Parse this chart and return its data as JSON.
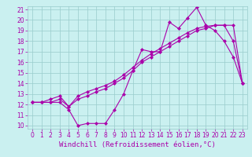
{
  "xlabel": "Windchill (Refroidissement éolien,°C)",
  "xlim": [
    -0.5,
    23.5
  ],
  "ylim": [
    9.7,
    21.3
  ],
  "yticks": [
    10,
    11,
    12,
    13,
    14,
    15,
    16,
    17,
    18,
    19,
    20,
    21
  ],
  "xticks": [
    0,
    1,
    2,
    3,
    4,
    5,
    6,
    7,
    8,
    9,
    10,
    11,
    12,
    13,
    14,
    15,
    16,
    17,
    18,
    19,
    20,
    21,
    22,
    23
  ],
  "bg_color": "#caf0f0",
  "line_color": "#aa00aa",
  "line1_x": [
    0,
    1,
    2,
    3,
    4,
    5,
    6,
    7,
    8,
    9,
    10,
    11,
    12,
    13,
    14,
    15,
    16,
    17,
    18,
    19,
    20,
    21,
    22,
    23
  ],
  "line1_y": [
    12.2,
    12.2,
    12.2,
    12.2,
    11.5,
    10.0,
    10.2,
    10.2,
    10.2,
    11.5,
    13.0,
    15.2,
    17.2,
    17.0,
    17.0,
    19.8,
    19.2,
    20.2,
    21.2,
    19.5,
    19.0,
    18.0,
    16.5,
    14.0
  ],
  "line2_x": [
    0,
    1,
    2,
    3,
    4,
    5,
    6,
    7,
    8,
    9,
    10,
    11,
    12,
    13,
    14,
    15,
    16,
    17,
    18,
    19,
    20,
    21,
    22,
    23
  ],
  "line2_y": [
    12.2,
    12.2,
    12.2,
    12.5,
    11.8,
    12.5,
    12.8,
    13.2,
    13.5,
    14.0,
    14.5,
    15.2,
    16.0,
    16.5,
    17.0,
    17.5,
    18.0,
    18.5,
    19.0,
    19.2,
    19.5,
    19.5,
    19.5,
    14.0
  ],
  "line3_x": [
    0,
    1,
    2,
    3,
    4,
    5,
    6,
    7,
    8,
    9,
    10,
    11,
    12,
    13,
    14,
    15,
    16,
    17,
    18,
    19,
    20,
    21,
    22,
    23
  ],
  "line3_y": [
    12.2,
    12.2,
    12.5,
    12.8,
    11.8,
    12.8,
    13.2,
    13.5,
    13.8,
    14.2,
    14.8,
    15.5,
    16.2,
    16.8,
    17.3,
    17.8,
    18.3,
    18.8,
    19.2,
    19.4,
    19.5,
    19.5,
    18.0,
    14.0
  ],
  "grid_color": "#99cccc",
  "tick_fontsize": 5.5,
  "xlabel_fontsize": 6.5,
  "marker": "D",
  "marker_size": 2.0,
  "linewidth": 0.8
}
